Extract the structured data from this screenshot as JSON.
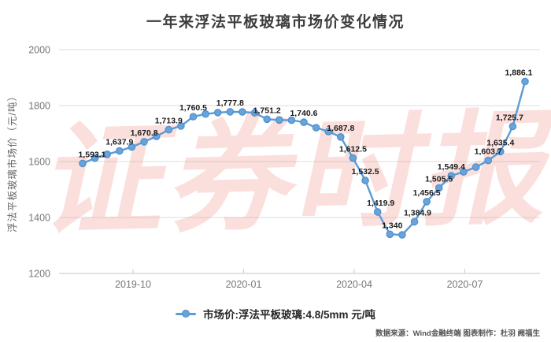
{
  "title": "一年来浮法平板玻璃市场价变化情况",
  "watermark": "证券时报",
  "source_note": "数据来源：Wind金融终端 图表制作：杜羽 阙福生",
  "legend": {
    "marker": "line-dot-icon",
    "label": "市场价:浮法平板玻璃:4.8/5mm 元/吨"
  },
  "colors": {
    "line": "#5b9bd5",
    "dot_fill": "#68a3da",
    "dot_stroke": "#4d8ecf",
    "grid": "#dedede",
    "axis": "#c4c4c4",
    "tick_text": "#767676",
    "label_text": "#1c1c1c",
    "watermark": "#ee6557",
    "title_text": "#3d3d3d"
  },
  "chart_data": {
    "type": "line",
    "title": "一年来浮法平板玻璃市场价变化情况",
    "xlabel": "",
    "ylabel": "浮法平板玻璃市场价（元/吨）",
    "ylim": [
      1200,
      2000
    ],
    "yticks": [
      2000,
      1800,
      1600,
      1400,
      1200
    ],
    "xticks": [
      {
        "label": "2019-10",
        "pos": 4.1
      },
      {
        "label": "2020-01",
        "pos": 13.1
      },
      {
        "label": "2020-04",
        "pos": 22.1
      },
      {
        "label": "2020-07",
        "pos": 31.1
      }
    ],
    "grid": "horizontal",
    "legend_position": "bottom",
    "series": [
      {
        "name": "市场价:浮法平板玻璃:4.8/5mm 元/吨",
        "points": [
          {
            "v": 1593.1,
            "label": "1,593.1",
            "dx": 12
          },
          {
            "v": 1612
          },
          {
            "v": 1626
          },
          {
            "v": 1637.9,
            "label": "1,637.9"
          },
          {
            "v": 1652
          },
          {
            "v": 1670.8,
            "label": "1,670.8"
          },
          {
            "v": 1690
          },
          {
            "v": 1713.9,
            "label": "1,713.9"
          },
          {
            "v": 1727
          },
          {
            "v": 1760.5,
            "label": "1,760.5"
          },
          {
            "v": 1770
          },
          {
            "v": 1775
          },
          {
            "v": 1777.8,
            "label": "1,777.8"
          },
          {
            "v": 1777.5
          },
          {
            "v": 1774
          },
          {
            "v": 1751.2,
            "label": "1,751.2"
          },
          {
            "v": 1748.5
          },
          {
            "v": 1748
          },
          {
            "v": 1740.6,
            "label": "1,740.6"
          },
          {
            "v": 1721
          },
          {
            "v": 1707
          },
          {
            "v": 1687.8,
            "label": "1,687.8"
          },
          {
            "v": 1612.5,
            "label": "1,612.5"
          },
          {
            "v": 1532.5,
            "label": "1,532.5"
          },
          {
            "v": 1419.9,
            "label": "1,419.9",
            "dx": 4
          },
          {
            "v": 1340,
            "label": "1,340",
            "dx": 3
          },
          {
            "v": 1338
          },
          {
            "v": 1384.9,
            "label": "1,384.9",
            "dx": 4
          },
          {
            "v": 1456.5,
            "label": "1,456.5"
          },
          {
            "v": 1505.5,
            "label": "1,505.5"
          },
          {
            "v": 1549.4,
            "label": "1,549.4"
          },
          {
            "v": 1563
          },
          {
            "v": 1580
          },
          {
            "v": 1603.7,
            "label": "1,603.7"
          },
          {
            "v": 1635.4,
            "label": "1,635.4"
          },
          {
            "v": 1725.7,
            "label": "1,725.7",
            "dx": -4
          },
          {
            "v": 1886.1,
            "label": "1,886.1",
            "dx": -8
          }
        ]
      }
    ]
  }
}
